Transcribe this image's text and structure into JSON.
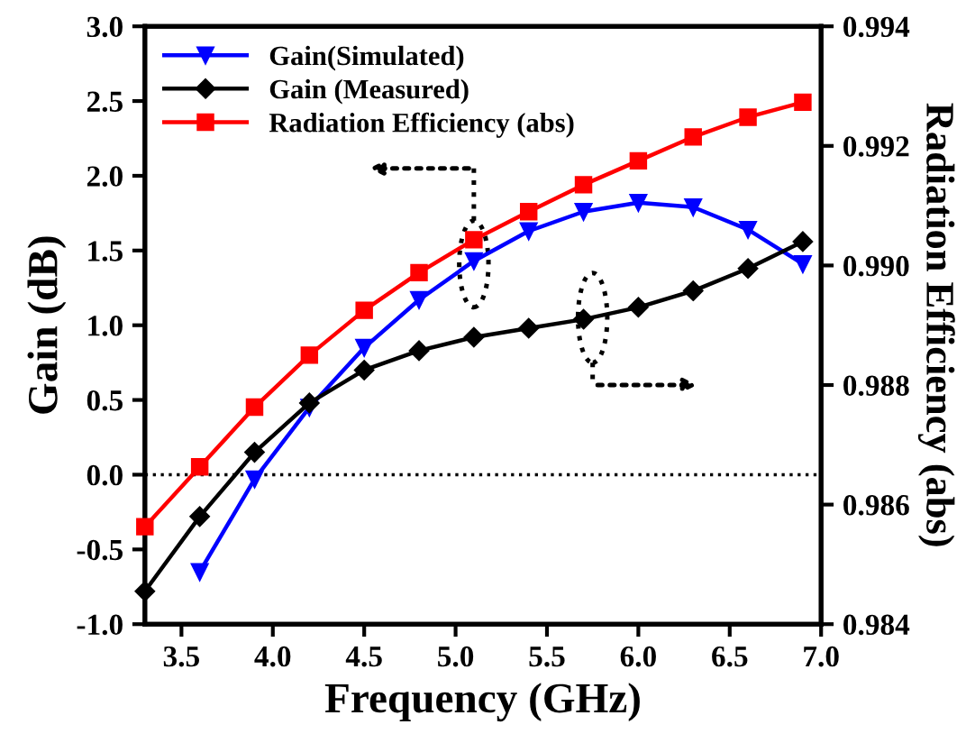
{
  "chart_data": {
    "type": "line",
    "xlabel": "Frequency (GHz)",
    "ylabel": "Gain (dB)",
    "y2label": "Radiation Efficiency (abs)",
    "x": [
      3.3,
      3.6,
      3.9,
      4.2,
      4.5,
      4.8,
      5.1,
      5.4,
      5.7,
      6.0,
      6.3,
      6.6,
      6.9
    ],
    "series": [
      {
        "name": "Gain(Simulated)",
        "color": "#0000ff",
        "marker": "triangle",
        "values": [
          null,
          -0.65,
          -0.03,
          0.45,
          0.85,
          1.17,
          1.43,
          1.63,
          1.76,
          1.82,
          1.79,
          1.64,
          1.41
        ]
      },
      {
        "name": "Gain (Measured)",
        "color": "#000000",
        "marker": "diamond",
        "values": [
          -0.78,
          -0.28,
          0.15,
          0.48,
          0.7,
          0.83,
          0.92,
          0.98,
          1.04,
          1.12,
          1.23,
          1.38,
          1.56
        ]
      },
      {
        "name": "Radiation Efficiency (abs)",
        "color": "#ff0000",
        "marker": "square",
        "axis": "y2",
        "values": [
          0.98563,
          0.98663,
          0.98763,
          0.9885,
          0.98925,
          0.98988,
          0.99043,
          0.9909,
          0.99135,
          0.99175,
          0.99215,
          0.99248,
          0.99273
        ]
      }
    ],
    "xlim": [
      3.3,
      7.0
    ],
    "xticks": [
      3.5,
      {
        "value": 4.0,
        "label": "4.0"
      },
      4.5,
      {
        "value": 5.0,
        "label": "5.0"
      },
      5.5,
      {
        "value": 6.0,
        "label": "6.0"
      },
      6.5,
      {
        "value": 7.0,
        "label": "7.0"
      }
    ],
    "ylim": [
      -1.0,
      3.0
    ],
    "yticks": [
      {
        "value": -1.0,
        "label": "-1.0"
      },
      {
        "value": -0.5,
        "label": "-0.5"
      },
      {
        "value": 0.0,
        "label": "0.0"
      },
      {
        "value": 0.5,
        "label": "0.5"
      },
      {
        "value": 1.0,
        "label": "1.0"
      },
      {
        "value": 1.5,
        "label": "1.5"
      },
      {
        "value": 2.0,
        "label": "2.0"
      },
      {
        "value": 2.5,
        "label": "2.5"
      },
      {
        "value": 3.0,
        "label": "3.0"
      }
    ],
    "y2lim": [
      0.984,
      0.994
    ],
    "y2ticks": [
      0.984,
      0.986,
      0.988,
      {
        "value": 0.99,
        "label": "0.990"
      },
      0.992,
      0.994
    ],
    "ref_lines": [
      {
        "axis": "y",
        "value": 0,
        "color": "#000000",
        "line_style": "dotted"
      }
    ],
    "legend": "top left",
    "grid": false,
    "line_style": "solid"
  }
}
